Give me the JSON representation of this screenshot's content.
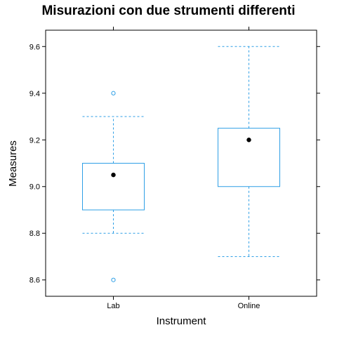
{
  "chart_data": {
    "type": "boxplot",
    "title": "Misurazioni con due strumenti differenti",
    "xlabel": "Instrument",
    "ylabel": "Measures",
    "ylim": [
      8.53,
      9.67
    ],
    "y_ticks": [
      8.6,
      8.8,
      9.0,
      9.2,
      9.4,
      9.6
    ],
    "y_tick_labels": [
      "8.6",
      "8.8",
      "9.0",
      "9.2",
      "9.4",
      "9.6"
    ],
    "categories": [
      "Lab",
      "Online"
    ],
    "boxes": [
      {
        "name": "Lab",
        "whisker_low": 8.8,
        "q1": 8.9,
        "median": 9.05,
        "q3": 9.1,
        "whisker_high": 9.3,
        "outliers": [
          8.6,
          9.4
        ]
      },
      {
        "name": "Online",
        "whisker_low": 8.7,
        "q1": 9.0,
        "median": 9.2,
        "q3": 9.25,
        "whisker_high": 9.6,
        "outliers": []
      }
    ],
    "grid": false,
    "colors": {
      "box": "#2e9fe6",
      "median": "#000000",
      "frame": "#000000"
    }
  }
}
